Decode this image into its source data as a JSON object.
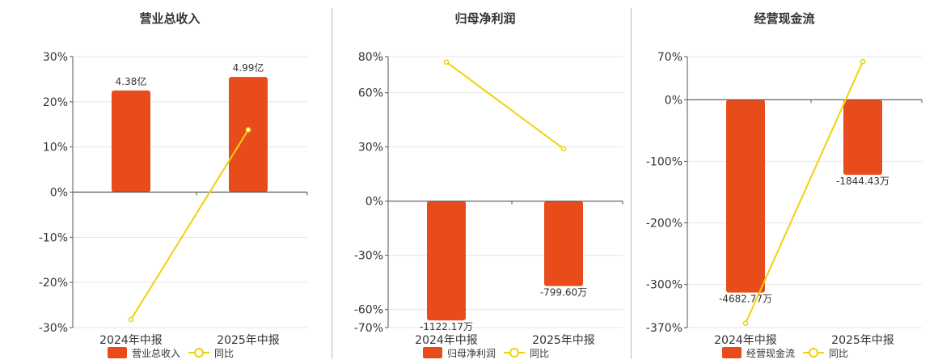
{
  "colors": {
    "bar": "#e84c1b",
    "line": "#f0d20a",
    "axis": "#555555",
    "grid": "#e6e6e6"
  },
  "chart_data": [
    {
      "type": "bar",
      "title": "营业总收入",
      "categories": [
        "2024年中报",
        "2025年中报"
      ],
      "series": [
        {
          "name": "营业总收入",
          "kind": "bar",
          "values": [
            22.5,
            25.5
          ],
          "labels": [
            "4.38亿",
            "4.99亿"
          ]
        },
        {
          "name": "同比",
          "kind": "line",
          "values": [
            -28.2,
            13.8
          ]
        }
      ],
      "yticks": [
        30,
        20,
        10,
        0,
        -10,
        -20,
        -30
      ],
      "ytick_labels": [
        "30%",
        "20%",
        "10%",
        "0%",
        "-10%",
        "-20%",
        "-30%"
      ],
      "ylim": [
        -30,
        30
      ],
      "legend": "bottom-center"
    },
    {
      "type": "bar",
      "title": "归母净利润",
      "categories": [
        "2024年中报",
        "2025年中报"
      ],
      "series": [
        {
          "name": "归母净利润",
          "kind": "bar",
          "values": [
            -66,
            -47
          ],
          "labels": [
            "-1122.17万",
            "-799.60万"
          ]
        },
        {
          "name": "同比",
          "kind": "line",
          "values": [
            77,
            29
          ]
        }
      ],
      "yticks": [
        80,
        60,
        30,
        0,
        -30,
        -60,
        -70
      ],
      "ytick_labels": [
        "80%",
        "60%",
        "30%",
        "0%",
        "-30%",
        "-60%",
        "-70%"
      ],
      "ylim": [
        -70,
        80
      ],
      "legend": "bottom-center"
    },
    {
      "type": "bar",
      "title": "经营现金流",
      "categories": [
        "2024年中报",
        "2025年中报"
      ],
      "series": [
        {
          "name": "经营现金流",
          "kind": "bar",
          "values": [
            -313,
            -122
          ],
          "labels": [
            "-4682.77万",
            "-1844.43万"
          ]
        },
        {
          "name": "同比",
          "kind": "line",
          "values": [
            -363,
            62
          ]
        }
      ],
      "yticks": [
        70,
        0,
        -100,
        -200,
        -300,
        -370
      ],
      "ytick_labels": [
        "70%",
        "0%",
        "-100%",
        "-200%",
        "-300%",
        "-370%"
      ],
      "ylim": [
        -370,
        70
      ],
      "legend": "bottom-center"
    }
  ]
}
